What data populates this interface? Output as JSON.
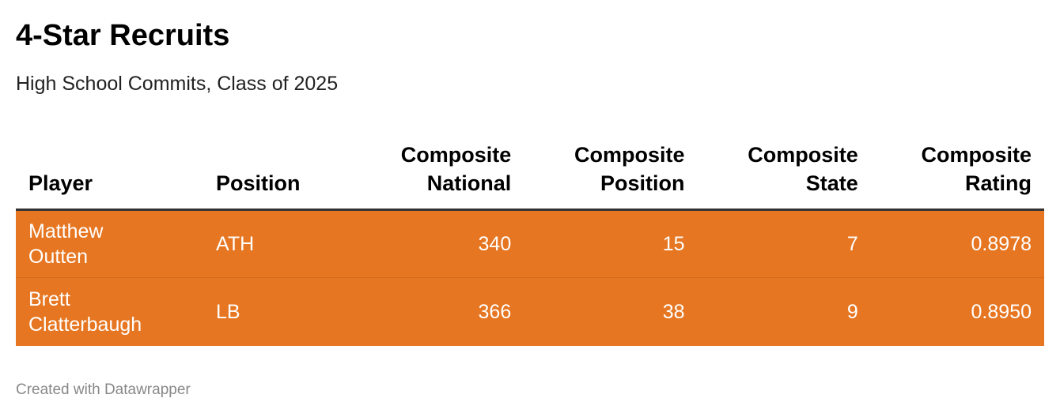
{
  "title": "4-Star Recruits",
  "subtitle": "High School Commits, Class of 2025",
  "footer": "Created with Datawrapper",
  "colors": {
    "row_background": "#e67621",
    "row_text": "#ffffff",
    "header_rule": "#333333"
  },
  "chart_data": {
    "type": "table",
    "columns": [
      {
        "key": "player",
        "label_line1": "",
        "label_line2": "Player"
      },
      {
        "key": "position",
        "label_line1": "",
        "label_line2": "Position"
      },
      {
        "key": "national",
        "label_line1": "Composite",
        "label_line2": "National"
      },
      {
        "key": "pos_rank",
        "label_line1": "Composite",
        "label_line2": "Position"
      },
      {
        "key": "state",
        "label_line1": "Composite",
        "label_line2": "State"
      },
      {
        "key": "rating",
        "label_line1": "Composite",
        "label_line2": "Rating"
      }
    ],
    "rows": [
      {
        "player_line1": "Matthew",
        "player_line2": "Outten",
        "position": "ATH",
        "national": "340",
        "pos_rank": "15",
        "state": "7",
        "rating": "0.8978"
      },
      {
        "player_line1": "Brett",
        "player_line2": "Clatterbaugh",
        "position": "LB",
        "national": "366",
        "pos_rank": "38",
        "state": "9",
        "rating": "0.8950"
      }
    ]
  }
}
